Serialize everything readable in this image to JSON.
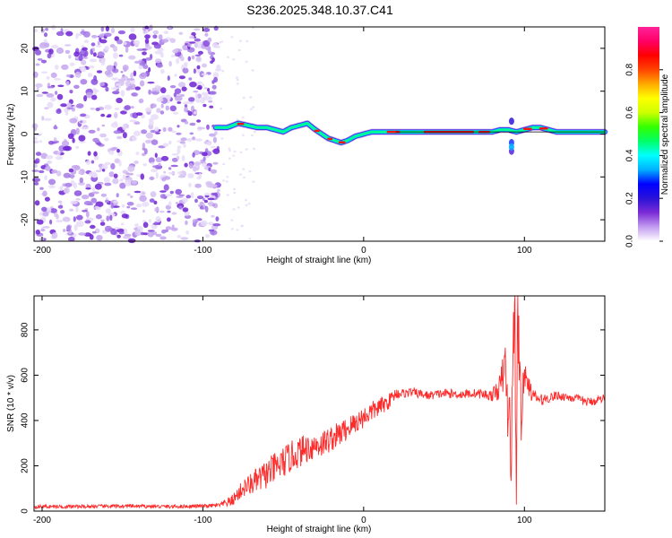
{
  "title": "S236.2025.348.10.37.C41",
  "chart_data": [
    {
      "type": "heatmap",
      "xlabel": "Height of straight line (km)",
      "ylabel": "Frequency (Hz)",
      "xlim": [
        -205,
        150
      ],
      "ylim": [
        -25,
        25
      ],
      "xticks": [
        -200,
        -100,
        0,
        100
      ],
      "yticks": [
        -20,
        -10,
        0,
        10,
        20
      ],
      "noise_region_x": [
        -205,
        -90
      ],
      "ridge": {
        "x": [
          -92,
          -85,
          -78,
          -72,
          -66,
          -60,
          -55,
          -50,
          -45,
          -40,
          -35,
          -30,
          -26,
          -22,
          -18,
          -14,
          -10,
          -5,
          0,
          5,
          10,
          15,
          20,
          30,
          40,
          50,
          60,
          70,
          75,
          80,
          85,
          90,
          95,
          100,
          105,
          110,
          115,
          120,
          125,
          130,
          135,
          140,
          145,
          150
        ],
        "y": [
          1.5,
          1.5,
          2.5,
          2.0,
          1.5,
          1.5,
          1.0,
          0.5,
          1.5,
          2.0,
          2.5,
          1.0,
          0.0,
          -1.0,
          -1.5,
          -2.0,
          -1.5,
          -0.5,
          0.0,
          0.5,
          0.5,
          0.5,
          0.5,
          0.5,
          0.5,
          0.5,
          0.5,
          0.5,
          0.5,
          0.5,
          1.0,
          1.0,
          0.5,
          1.0,
          1.5,
          1.5,
          1.0,
          0.5,
          0.5,
          0.5,
          0.5,
          0.5,
          0.5,
          0.5
        ]
      },
      "colorbar": {
        "label": "Normalized spectral amplitude",
        "range": [
          0,
          1
        ],
        "ticks": [
          "0.0",
          "0.2",
          "0.4",
          "0.6",
          "0.8"
        ],
        "colors": [
          "#ffffff",
          "#c29cf0",
          "#7b2cd6",
          "#2a12d8",
          "#0000ff",
          "#00b0ff",
          "#00ffff",
          "#00ff66",
          "#33ff00",
          "#ccff00",
          "#ffff00",
          "#ffaa00",
          "#ff4400",
          "#ff0000",
          "#ff0066",
          "#ff2299"
        ]
      }
    },
    {
      "type": "line",
      "xlabel": "Height of straight line (km)",
      "ylabel": "SNR (10 * v/v)",
      "xlim": [
        -205,
        150
      ],
      "ylim": [
        0,
        950
      ],
      "xticks": [
        -200,
        -100,
        0,
        100
      ],
      "yticks": [
        0,
        200,
        400,
        600,
        800
      ],
      "series": [
        {
          "name": "SNR",
          "color": "#ff2b2b",
          "x": [
            -205,
            -180,
            -150,
            -120,
            -100,
            -90,
            -82,
            -75,
            -65,
            -55,
            -45,
            -35,
            -25,
            -15,
            -5,
            5,
            15,
            20,
            25,
            30,
            40,
            50,
            60,
            70,
            80,
            85,
            88,
            90,
            92,
            94,
            95,
            96,
            97,
            98,
            100,
            105,
            110,
            120,
            130,
            140,
            150
          ],
          "y": [
            20,
            20,
            22,
            20,
            22,
            25,
            45,
            100,
            140,
            190,
            240,
            280,
            300,
            340,
            390,
            440,
            480,
            520,
            520,
            525,
            510,
            520,
            515,
            520,
            510,
            550,
            650,
            400,
            300,
            950,
            150,
            900,
            650,
            420,
            600,
            510,
            490,
            510,
            500,
            480,
            500
          ],
          "noise_amplitude": [
            8,
            8,
            8,
            8,
            8,
            10,
            25,
            40,
            60,
            70,
            70,
            65,
            60,
            55,
            50,
            45,
            35,
            25,
            20,
            20,
            20,
            20,
            20,
            20,
            25,
            60,
            120,
            180,
            200,
            250,
            250,
            250,
            200,
            120,
            60,
            30,
            25,
            20,
            20,
            20,
            20
          ]
        }
      ]
    }
  ]
}
